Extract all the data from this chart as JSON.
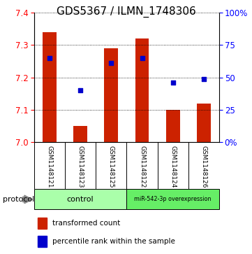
{
  "title": "GDS5367 / ILMN_1748306",
  "samples": [
    "GSM1148121",
    "GSM1148123",
    "GSM1148125",
    "GSM1148122",
    "GSM1148124",
    "GSM1148126"
  ],
  "bar_values": [
    7.34,
    7.05,
    7.29,
    7.32,
    7.1,
    7.12
  ],
  "percentile_values": [
    7.26,
    7.16,
    7.245,
    7.26,
    7.185,
    7.195
  ],
  "bar_bottom": 7.0,
  "ylim_left": [
    7.0,
    7.4
  ],
  "ylim_right": [
    0,
    100
  ],
  "yticks_left": [
    7.0,
    7.1,
    7.2,
    7.3,
    7.4
  ],
  "yticks_right": [
    0,
    25,
    50,
    75,
    100
  ],
  "bar_color": "#cc2200",
  "percentile_color": "#0000cc",
  "label_area_bg": "#c8c8c8",
  "protocol_control_color": "#aaffaa",
  "protocol_mir_color": "#66ee66",
  "legend_bar_label": "transformed count",
  "legend_pct_label": "percentile rank within the sample",
  "title_fontsize": 11,
  "tick_fontsize": 8.5,
  "sample_fontsize": 6.5,
  "protocol_fontsize": 8,
  "legend_fontsize": 7.5
}
